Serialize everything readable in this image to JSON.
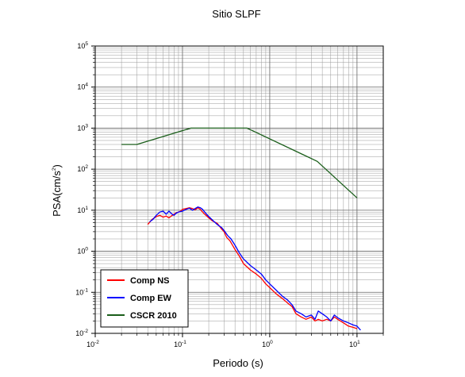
{
  "chart_data": {
    "type": "line",
    "title": "Sitio SLPF",
    "xlabel": "Periodo (s)",
    "ylabel_base": "PSA(cm/s",
    "ylabel_exp": "2",
    "ylabel_close": ")",
    "xscale": "log",
    "yscale": "log",
    "xlim": [
      0.01,
      20
    ],
    "ylim": [
      0.01,
      100000
    ],
    "x_ticks": [
      {
        "base": "10",
        "exp": "-2",
        "value": 0.01
      },
      {
        "base": "10",
        "exp": "-1",
        "value": 0.1
      },
      {
        "base": "10",
        "exp": "0",
        "value": 1
      },
      {
        "base": "10",
        "exp": "1",
        "value": 10
      }
    ],
    "y_ticks": [
      {
        "base": "10",
        "exp": "-2",
        "value": 0.01
      },
      {
        "base": "10",
        "exp": "-1",
        "value": 0.1
      },
      {
        "base": "10",
        "exp": "0",
        "value": 1
      },
      {
        "base": "10",
        "exp": "1",
        "value": 10
      },
      {
        "base": "10",
        "exp": "2",
        "value": 100
      },
      {
        "base": "10",
        "exp": "3",
        "value": 1000
      },
      {
        "base": "10",
        "exp": "4",
        "value": 10000
      },
      {
        "base": "10",
        "exp": "5",
        "value": 100000
      }
    ],
    "grid": true,
    "legend_position": "bottom-left",
    "series": [
      {
        "name": "Comp NS",
        "color": "#ff0000",
        "points": [
          [
            0.04,
            4.5
          ],
          [
            0.045,
            6.0
          ],
          [
            0.05,
            7.0
          ],
          [
            0.055,
            7.5
          ],
          [
            0.06,
            6.8
          ],
          [
            0.065,
            7.2
          ],
          [
            0.07,
            6.5
          ],
          [
            0.075,
            7.3
          ],
          [
            0.08,
            8.0
          ],
          [
            0.085,
            8.7
          ],
          [
            0.09,
            9.0
          ],
          [
            0.095,
            9.5
          ],
          [
            0.1,
            10.5
          ],
          [
            0.11,
            11.0
          ],
          [
            0.12,
            11.5
          ],
          [
            0.13,
            11.0
          ],
          [
            0.14,
            10.2
          ],
          [
            0.15,
            11.5
          ],
          [
            0.16,
            10.5
          ],
          [
            0.17,
            9.0
          ],
          [
            0.18,
            8.0
          ],
          [
            0.2,
            6.5
          ],
          [
            0.22,
            5.5
          ],
          [
            0.25,
            4.8
          ],
          [
            0.28,
            3.5
          ],
          [
            0.3,
            3.0
          ],
          [
            0.32,
            2.2
          ],
          [
            0.35,
            1.8
          ],
          [
            0.4,
            1.1
          ],
          [
            0.45,
            0.75
          ],
          [
            0.5,
            0.5
          ],
          [
            0.6,
            0.35
          ],
          [
            0.7,
            0.28
          ],
          [
            0.8,
            0.22
          ],
          [
            0.9,
            0.16
          ],
          [
            1.0,
            0.13
          ],
          [
            1.2,
            0.09
          ],
          [
            1.4,
            0.07
          ],
          [
            1.6,
            0.055
          ],
          [
            1.8,
            0.045
          ],
          [
            2.0,
            0.03
          ],
          [
            2.3,
            0.025
          ],
          [
            2.6,
            0.022
          ],
          [
            3.0,
            0.025
          ],
          [
            3.3,
            0.02
          ],
          [
            3.6,
            0.022
          ],
          [
            4.0,
            0.02
          ],
          [
            4.5,
            0.022
          ],
          [
            5.0,
            0.02
          ],
          [
            5.5,
            0.025
          ],
          [
            6.0,
            0.022
          ],
          [
            7.0,
            0.018
          ],
          [
            8.0,
            0.015
          ],
          [
            9.0,
            0.014
          ],
          [
            10.0,
            0.013
          ]
        ]
      },
      {
        "name": "Comp EW",
        "color": "#0000ff",
        "points": [
          [
            0.042,
            5.2
          ],
          [
            0.046,
            6.0
          ],
          [
            0.05,
            7.5
          ],
          [
            0.055,
            9.0
          ],
          [
            0.06,
            9.5
          ],
          [
            0.065,
            8.0
          ],
          [
            0.07,
            9.5
          ],
          [
            0.075,
            8.2
          ],
          [
            0.08,
            7.5
          ],
          [
            0.085,
            8.5
          ],
          [
            0.09,
            9.0
          ],
          [
            0.1,
            9.5
          ],
          [
            0.11,
            10.5
          ],
          [
            0.12,
            11.2
          ],
          [
            0.13,
            10.0
          ],
          [
            0.14,
            11.0
          ],
          [
            0.15,
            12.0
          ],
          [
            0.16,
            11.5
          ],
          [
            0.17,
            10.5
          ],
          [
            0.18,
            9.0
          ],
          [
            0.2,
            7.0
          ],
          [
            0.22,
            5.8
          ],
          [
            0.25,
            4.5
          ],
          [
            0.28,
            3.8
          ],
          [
            0.3,
            3.2
          ],
          [
            0.33,
            2.4
          ],
          [
            0.36,
            2.0
          ],
          [
            0.4,
            1.4
          ],
          [
            0.45,
            0.9
          ],
          [
            0.5,
            0.65
          ],
          [
            0.6,
            0.45
          ],
          [
            0.7,
            0.35
          ],
          [
            0.8,
            0.28
          ],
          [
            0.9,
            0.2
          ],
          [
            1.0,
            0.16
          ],
          [
            1.2,
            0.11
          ],
          [
            1.4,
            0.08
          ],
          [
            1.6,
            0.065
          ],
          [
            1.8,
            0.05
          ],
          [
            2.0,
            0.035
          ],
          [
            2.3,
            0.03
          ],
          [
            2.6,
            0.025
          ],
          [
            3.0,
            0.028
          ],
          [
            3.3,
            0.022
          ],
          [
            3.6,
            0.035
          ],
          [
            4.0,
            0.03
          ],
          [
            4.5,
            0.025
          ],
          [
            5.0,
            0.02
          ],
          [
            5.5,
            0.028
          ],
          [
            6.0,
            0.024
          ],
          [
            7.0,
            0.02
          ],
          [
            8.0,
            0.018
          ],
          [
            9.0,
            0.016
          ],
          [
            10.0,
            0.015
          ],
          [
            11.0,
            0.012
          ]
        ]
      },
      {
        "name": "CSCR 2010",
        "color": "#1a5e1a",
        "points": [
          [
            0.02,
            400
          ],
          [
            0.03,
            400
          ],
          [
            0.125,
            1000
          ],
          [
            0.55,
            1000
          ],
          [
            3.5,
            155
          ],
          [
            10.0,
            20
          ]
        ]
      }
    ]
  }
}
